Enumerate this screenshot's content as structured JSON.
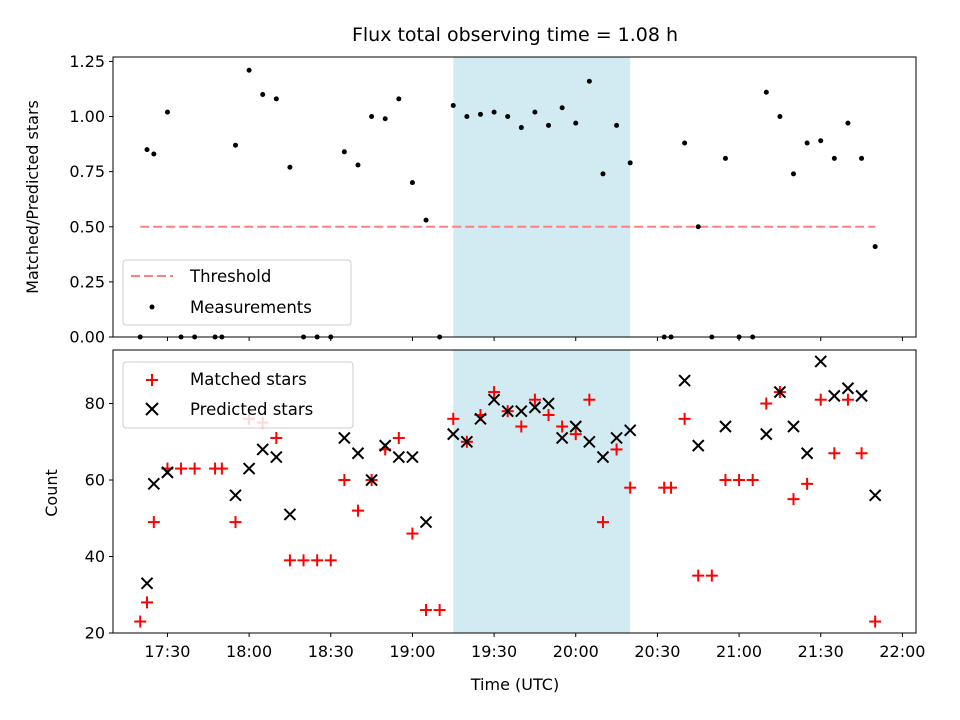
{
  "chart_data": [
    {
      "type": "scatter",
      "title": "Flux total observing time = 1.08 h",
      "ylabel": "Matched/Predicted stars",
      "xlabel": "",
      "xlim": [
        "17:10",
        "22:05"
      ],
      "ylim": [
        0,
        1.27
      ],
      "grid": false,
      "legend_placement": "lower-left",
      "highlight_span": {
        "start": "19:15",
        "end": "20:20",
        "color": "#add8e6"
      },
      "yticks": [
        {
          "value": 0.0,
          "label": "0.00"
        },
        {
          "value": 0.25,
          "label": "0.25"
        },
        {
          "value": 0.5,
          "label": "0.50"
        },
        {
          "value": 0.75,
          "label": "0.75"
        },
        {
          "value": 1.0,
          "label": "1.00"
        },
        {
          "value": 1.25,
          "label": "1.25"
        }
      ],
      "threshold": {
        "name": "Threshold",
        "value": 0.5,
        "x_start": "17:20",
        "x_end": "21:50",
        "color": "#ff7f7f"
      },
      "series": [
        {
          "name": "Measurements",
          "color": "#000000",
          "x": [
            "17:20",
            "17:22.5",
            "17:25",
            "17:30",
            "17:35",
            "17:40",
            "17:47.5",
            "17:50",
            "17:55",
            "18:00",
            "18:05",
            "18:10",
            "18:15",
            "18:20",
            "18:25",
            "18:30",
            "18:35",
            "18:40",
            "18:45",
            "18:50",
            "18:55",
            "19:00",
            "19:05",
            "19:10",
            "19:15",
            "19:20",
            "19:25",
            "19:30",
            "19:35",
            "19:40",
            "19:45",
            "19:50",
            "19:55",
            "20:00",
            "20:05",
            "20:10",
            "20:15",
            "20:20",
            "20:32.5",
            "20:35",
            "20:40",
            "20:45",
            "20:50",
            "20:55",
            "21:00",
            "21:05",
            "21:10",
            "21:15",
            "21:20",
            "21:25",
            "21:30",
            "21:35",
            "21:40",
            "21:45",
            "21:50"
          ],
          "y": [
            0.0,
            0.85,
            0.83,
            1.02,
            0.0,
            0.0,
            0.0,
            0.0,
            0.87,
            1.21,
            1.1,
            1.08,
            0.77,
            0.0,
            0.0,
            0.0,
            0.84,
            0.78,
            1.0,
            0.99,
            1.08,
            0.7,
            0.53,
            0.0,
            1.05,
            1.0,
            1.01,
            1.02,
            1.0,
            0.95,
            1.02,
            0.96,
            1.04,
            0.97,
            1.16,
            0.74,
            0.96,
            0.79,
            0.0,
            0.0,
            0.88,
            0.5,
            0.0,
            0.81,
            0.0,
            0.0,
            1.11,
            1.0,
            0.74,
            0.88,
            0.89,
            0.81,
            0.97,
            0.81,
            0.41
          ]
        }
      ]
    },
    {
      "type": "scatter",
      "title": "",
      "ylabel": "Count",
      "xlabel": "Time (UTC)",
      "xlim": [
        "17:10",
        "22:05"
      ],
      "ylim": [
        20,
        94
      ],
      "grid": false,
      "legend_placement": "upper-left",
      "highlight_span": {
        "start": "19:15",
        "end": "20:20",
        "color": "#add8e6"
      },
      "xticks": [
        "17:30",
        "18:00",
        "18:30",
        "19:00",
        "19:30",
        "20:00",
        "20:30",
        "21:00",
        "21:30",
        "22:00"
      ],
      "yticks": [
        {
          "value": 20,
          "label": "20"
        },
        {
          "value": 40,
          "label": "40"
        },
        {
          "value": 60,
          "label": "60"
        },
        {
          "value": 80,
          "label": "80"
        }
      ],
      "series": [
        {
          "name": "Matched stars",
          "marker": "plus",
          "color": "#ff0000",
          "x": [
            "17:20",
            "17:22.5",
            "17:25",
            "17:30",
            "17:35",
            "17:40",
            "17:47.5",
            "17:50",
            "17:55",
            "18:00",
            "18:05",
            "18:10",
            "18:15",
            "18:20",
            "18:25",
            "18:30",
            "18:35",
            "18:40",
            "18:45",
            "18:50",
            "18:55",
            "19:00",
            "19:05",
            "19:10",
            "19:15",
            "19:20",
            "19:25",
            "19:30",
            "19:35",
            "19:40",
            "19:45",
            "19:50",
            "19:55",
            "20:00",
            "20:05",
            "20:10",
            "20:15",
            "20:20",
            "20:32.5",
            "20:35",
            "20:40",
            "20:45",
            "20:50",
            "20:55",
            "21:00",
            "21:05",
            "21:10",
            "21:15",
            "21:20",
            "21:25",
            "21:30",
            "21:35",
            "21:40",
            "21:45",
            "21:50"
          ],
          "y": [
            23,
            28,
            49,
            63,
            63,
            63,
            63,
            63,
            49,
            76,
            75,
            71,
            39,
            39,
            39,
            39,
            60,
            52,
            60,
            68,
            71,
            46,
            26,
            26,
            76,
            70,
            77,
            83,
            78,
            74,
            81,
            77,
            74,
            72,
            81,
            49,
            68,
            58,
            58,
            58,
            76,
            35,
            35,
            60,
            60,
            60,
            80,
            83,
            55,
            59,
            81,
            67,
            81,
            67,
            23
          ]
        },
        {
          "name": "Predicted stars",
          "marker": "x",
          "color": "#000000",
          "x": [
            "17:22.5",
            "17:25",
            "17:30",
            "17:55",
            "18:00",
            "18:05",
            "18:10",
            "18:15",
            "18:35",
            "18:40",
            "18:45",
            "18:50",
            "18:55",
            "19:00",
            "19:05",
            "19:15",
            "19:20",
            "19:25",
            "19:30",
            "19:35",
            "19:40",
            "19:45",
            "19:50",
            "19:55",
            "20:00",
            "20:05",
            "20:10",
            "20:15",
            "20:20",
            "20:40",
            "20:45",
            "20:55",
            "21:10",
            "21:15",
            "21:20",
            "21:25",
            "21:30",
            "21:35",
            "21:40",
            "21:45",
            "21:50"
          ],
          "y": [
            33,
            59,
            62,
            56,
            63,
            68,
            66,
            51,
            71,
            67,
            60,
            69,
            66,
            66,
            49,
            72,
            70,
            76,
            81,
            78,
            78,
            79,
            80,
            71,
            74,
            70,
            66,
            71,
            73,
            86,
            69,
            74,
            72,
            83,
            74,
            67,
            91,
            82,
            84,
            82,
            56
          ]
        }
      ]
    }
  ]
}
